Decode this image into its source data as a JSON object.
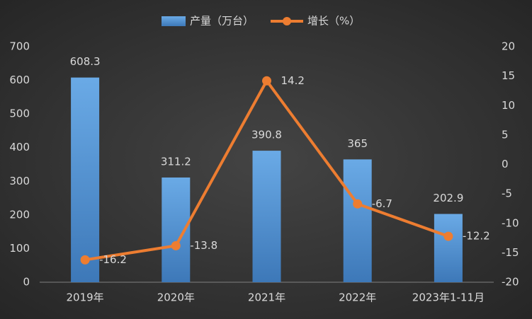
{
  "chart_data": {
    "type": "bar",
    "categories": [
      "2019年",
      "2020年",
      "2021年",
      "2022年",
      "2023年1-11月"
    ],
    "series": [
      {
        "name": "产量（万台）",
        "color": "#5b9bd5",
        "type": "bar",
        "values": [
          608.3,
          311.2,
          390.8,
          365,
          202.9
        ]
      },
      {
        "name": "增长（%）",
        "color": "#ed7d31",
        "type": "line",
        "axis": "y2",
        "values": [
          -16.2,
          -13.8,
          14.2,
          -6.7,
          -12.2
        ]
      }
    ],
    "ylim": [
      0,
      700
    ],
    "yticks": [
      0,
      100,
      200,
      300,
      400,
      500,
      600,
      700
    ],
    "y2lim": [
      -20,
      20
    ],
    "y2ticks": [
      -20,
      -15,
      -10,
      -5,
      0,
      5,
      10,
      15,
      20
    ]
  }
}
